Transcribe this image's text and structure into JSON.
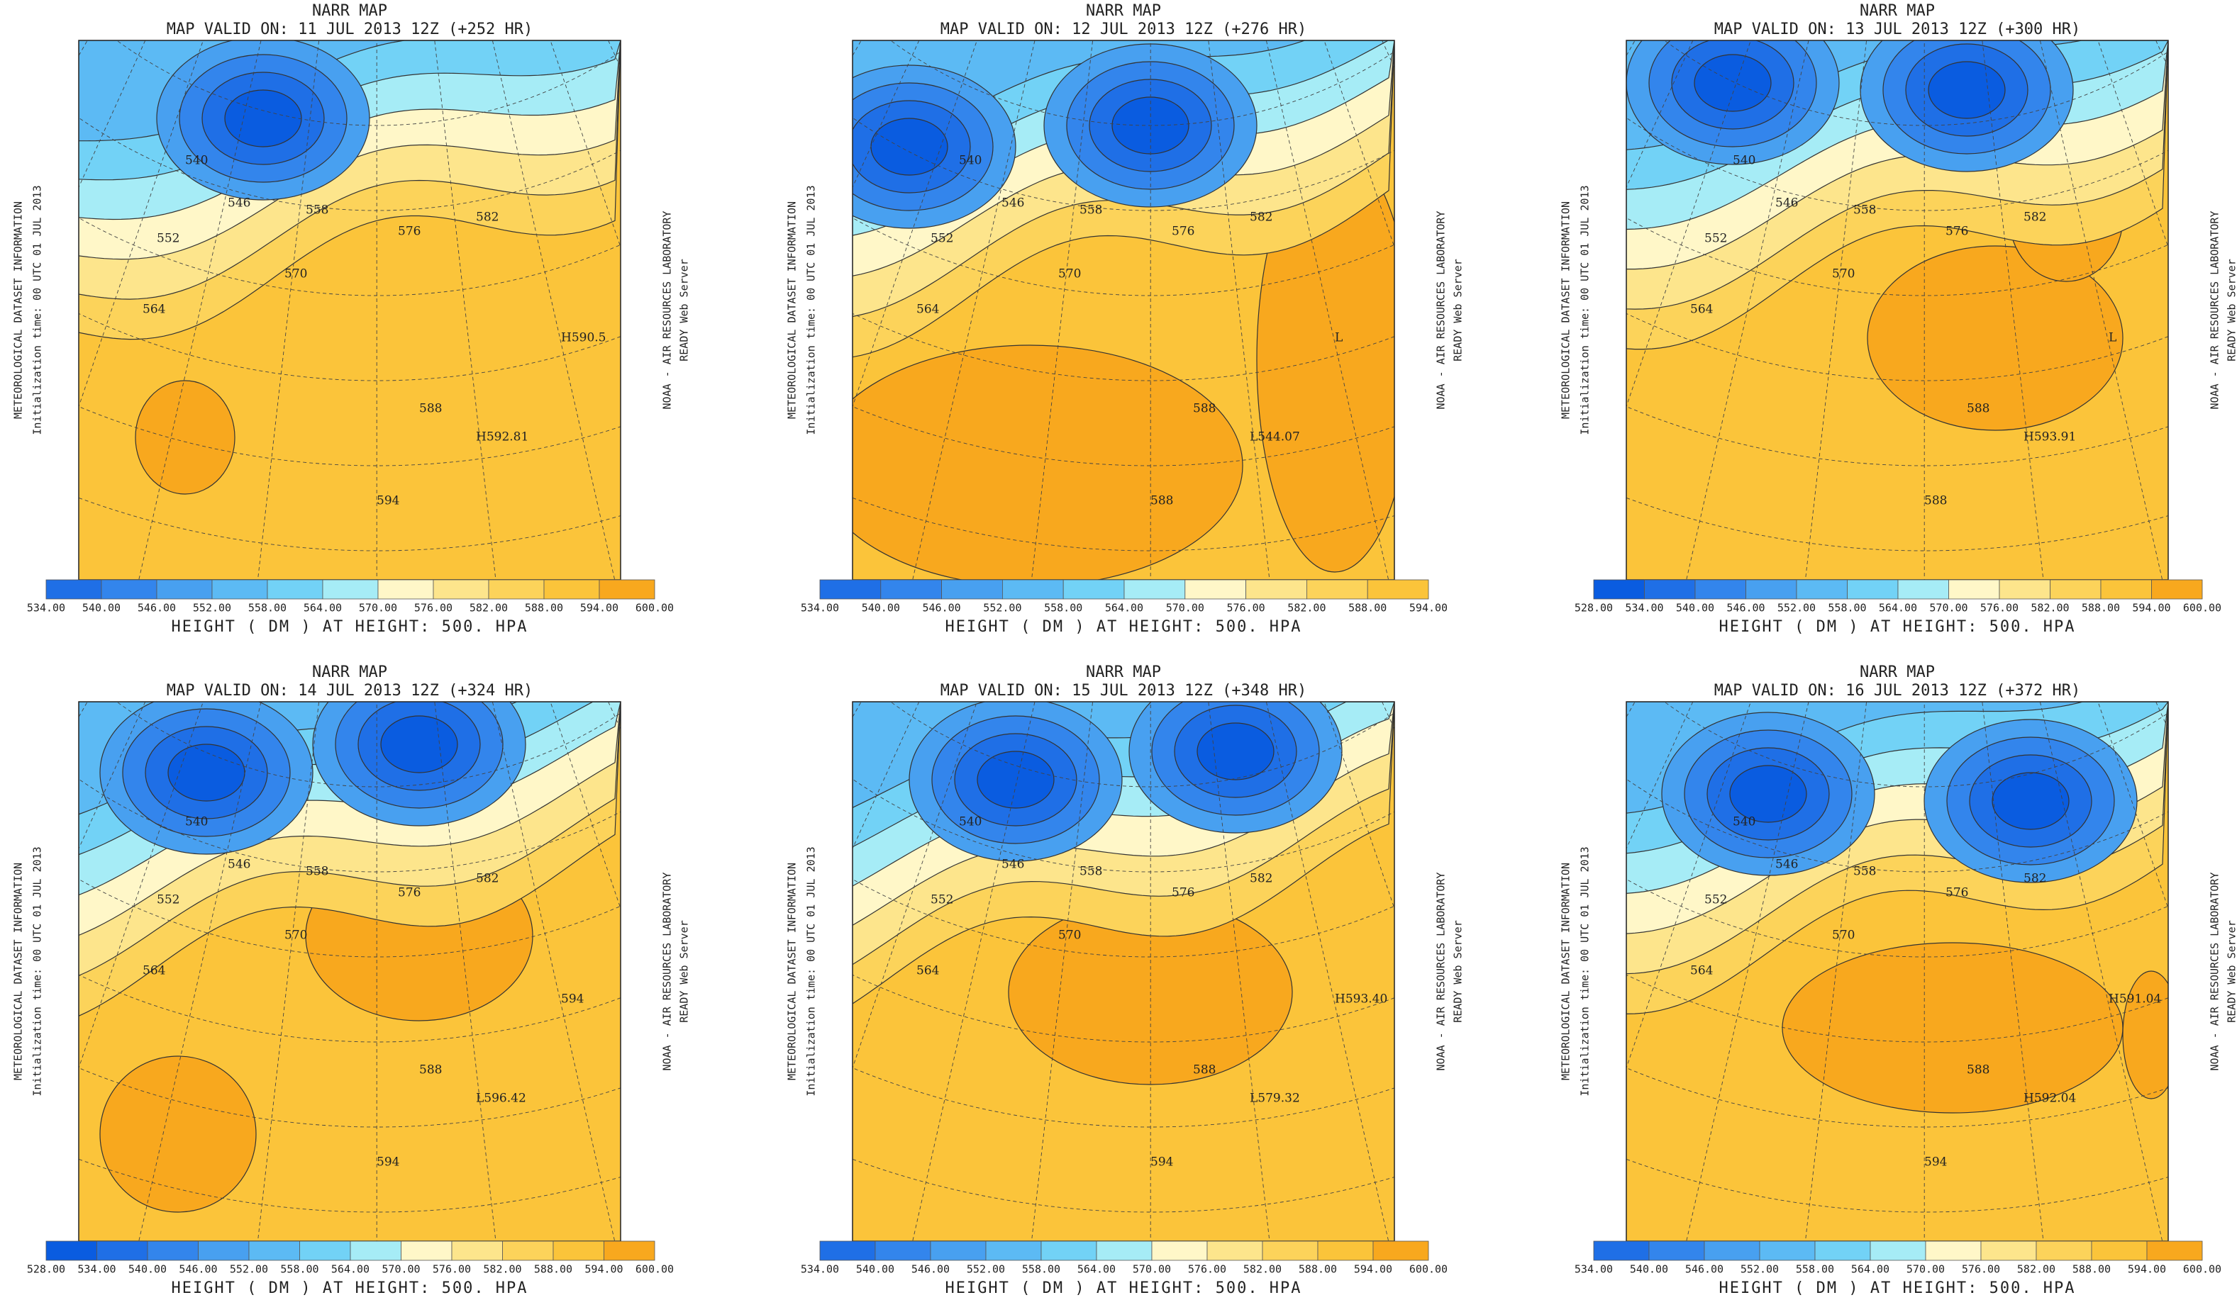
{
  "panels": [
    {
      "title": "NARR MAP",
      "valid": "MAP VALID ON: 11 JUL 2013 12Z (+252 HR)",
      "side_left": [
        "METEOROLOGICAL DATASET INFORMATION",
        "Initialization time: 00 UTC 01 JUL 2013"
      ],
      "side_right": [
        "NOAA - AIR RESOURCES LABORATORY",
        "READY Web Server"
      ],
      "colorbar_labels": [
        {
          "value": 534,
          "label": "534.00"
        },
        {
          "value": 540,
          "label": "540.00"
        },
        {
          "value": 546,
          "label": "546.00"
        },
        {
          "value": 552,
          "label": "552.00"
        },
        {
          "value": 558,
          "label": "558.00"
        },
        {
          "value": 564,
          "label": "564.00"
        },
        {
          "value": 570,
          "label": "570.00"
        },
        {
          "value": 576,
          "label": "576.00"
        },
        {
          "value": 582,
          "label": "582.00"
        },
        {
          "value": 588,
          "label": "588.00"
        },
        {
          "value": 594,
          "label": "594.00"
        },
        {
          "value": 600,
          "label": "600.00"
        }
      ],
      "caption": "HEIGHT ( DM ) AT HEIGHT: 500. HPA",
      "contour_labels": [
        "540",
        "546",
        "552",
        "558",
        "564",
        "570",
        "576",
        "582",
        "588",
        "594",
        "H592.81",
        "H590.5"
      ]
    },
    {
      "title": "NARR MAP",
      "valid": "MAP VALID ON: 12 JUL 2013 12Z (+276 HR)",
      "side_left": [
        "METEOROLOGICAL DATASET INFORMATION",
        "Initialization time: 00 UTC 01 JUL 2013"
      ],
      "side_right": [
        "NOAA - AIR RESOURCES LABORATORY",
        "READY Web Server"
      ],
      "colorbar_labels": [
        {
          "value": 534,
          "label": "534.00"
        },
        {
          "value": 540,
          "label": "540.00"
        },
        {
          "value": 546,
          "label": "546.00"
        },
        {
          "value": 552,
          "label": "552.00"
        },
        {
          "value": 558,
          "label": "558.00"
        },
        {
          "value": 564,
          "label": "564.00"
        },
        {
          "value": 570,
          "label": "570.00"
        },
        {
          "value": 576,
          "label": "576.00"
        },
        {
          "value": 582,
          "label": "582.00"
        },
        {
          "value": 588,
          "label": "588.00"
        },
        {
          "value": 594,
          "label": "594.00"
        }
      ],
      "caption": "HEIGHT ( DM ) AT HEIGHT: 500. HPA",
      "contour_labels": [
        "540",
        "546",
        "552",
        "558",
        "564",
        "570",
        "576",
        "582",
        "588",
        "588",
        "L544.07",
        "L"
      ]
    },
    {
      "title": "NARR MAP",
      "valid": "MAP VALID ON: 13 JUL 2013 12Z (+300 HR)",
      "side_left": [
        "METEOROLOGICAL DATASET INFORMATION",
        "Initialization time: 00 UTC 01 JUL 2013"
      ],
      "side_right": [
        "NOAA - AIR RESOURCES LABORATORY",
        "READY Web Server"
      ],
      "colorbar_labels": [
        {
          "value": 528,
          "label": "528.00"
        },
        {
          "value": 534,
          "label": "534.00"
        },
        {
          "value": 540,
          "label": "540.00"
        },
        {
          "value": 546,
          "label": "546.00"
        },
        {
          "value": 552,
          "label": "552.00"
        },
        {
          "value": 558,
          "label": "558.00"
        },
        {
          "value": 564,
          "label": "564.00"
        },
        {
          "value": 570,
          "label": "570.00"
        },
        {
          "value": 576,
          "label": "576.00"
        },
        {
          "value": 582,
          "label": "582.00"
        },
        {
          "value": 588,
          "label": "588.00"
        },
        {
          "value": 594,
          "label": "594.00"
        },
        {
          "value": 600,
          "label": "600.00"
        }
      ],
      "caption": "HEIGHT ( DM ) AT HEIGHT: 500. HPA",
      "contour_labels": [
        "540",
        "546",
        "552",
        "558",
        "564",
        "570",
        "576",
        "582",
        "588",
        "588",
        "H593.91",
        "L"
      ]
    },
    {
      "title": "NARR MAP",
      "valid": "MAP VALID ON: 14 JUL 2013 12Z (+324 HR)",
      "side_left": [
        "METEOROLOGICAL DATASET INFORMATION",
        "Initialization time: 00 UTC 01 JUL 2013"
      ],
      "side_right": [
        "NOAA - AIR RESOURCES LABORATORY",
        "READY Web Server"
      ],
      "colorbar_labels": [
        {
          "value": 528,
          "label": "528.00"
        },
        {
          "value": 534,
          "label": "534.00"
        },
        {
          "value": 540,
          "label": "540.00"
        },
        {
          "value": 546,
          "label": "546.00"
        },
        {
          "value": 552,
          "label": "552.00"
        },
        {
          "value": 558,
          "label": "558.00"
        },
        {
          "value": 564,
          "label": "564.00"
        },
        {
          "value": 570,
          "label": "570.00"
        },
        {
          "value": 576,
          "label": "576.00"
        },
        {
          "value": 582,
          "label": "582.00"
        },
        {
          "value": 588,
          "label": "588.00"
        },
        {
          "value": 594,
          "label": "594.00"
        },
        {
          "value": 600,
          "label": "600.00"
        }
      ],
      "caption": "HEIGHT ( DM ) AT HEIGHT: 500. HPA",
      "contour_labels": [
        "540",
        "546",
        "552",
        "558",
        "564",
        "570",
        "576",
        "582",
        "588",
        "594",
        "L596.42",
        "594"
      ]
    },
    {
      "title": "NARR MAP",
      "valid": "MAP VALID ON: 15 JUL 2013 12Z (+348 HR)",
      "side_left": [
        "METEOROLOGICAL DATASET INFORMATION",
        "Initialization time: 00 UTC 01 JUL 2013"
      ],
      "side_right": [
        "NOAA - AIR RESOURCES LABORATORY",
        "READY Web Server"
      ],
      "colorbar_labels": [
        {
          "value": 534,
          "label": "534.00"
        },
        {
          "value": 540,
          "label": "540.00"
        },
        {
          "value": 546,
          "label": "546.00"
        },
        {
          "value": 552,
          "label": "552.00"
        },
        {
          "value": 558,
          "label": "558.00"
        },
        {
          "value": 564,
          "label": "564.00"
        },
        {
          "value": 570,
          "label": "570.00"
        },
        {
          "value": 576,
          "label": "576.00"
        },
        {
          "value": 582,
          "label": "582.00"
        },
        {
          "value": 588,
          "label": "588.00"
        },
        {
          "value": 594,
          "label": "594.00"
        },
        {
          "value": 600,
          "label": "600.00"
        }
      ],
      "caption": "HEIGHT ( DM ) AT HEIGHT: 500. HPA",
      "contour_labels": [
        "540",
        "546",
        "552",
        "558",
        "564",
        "570",
        "576",
        "582",
        "588",
        "594",
        "L579.32",
        "H593.40"
      ]
    },
    {
      "title": "NARR MAP",
      "valid": "MAP VALID ON: 16 JUL 2013 12Z (+372 HR)",
      "side_left": [
        "METEOROLOGICAL DATASET INFORMATION",
        "Initialization time: 00 UTC 01 JUL 2013"
      ],
      "side_right": [
        "NOAA - AIR RESOURCES LABORATORY",
        "READY Web Server"
      ],
      "colorbar_labels": [
        {
          "value": 534,
          "label": "534.00"
        },
        {
          "value": 540,
          "label": "540.00"
        },
        {
          "value": 546,
          "label": "546.00"
        },
        {
          "value": 552,
          "label": "552.00"
        },
        {
          "value": 558,
          "label": "558.00"
        },
        {
          "value": 564,
          "label": "564.00"
        },
        {
          "value": 570,
          "label": "570.00"
        },
        {
          "value": 576,
          "label": "576.00"
        },
        {
          "value": 582,
          "label": "582.00"
        },
        {
          "value": 588,
          "label": "588.00"
        },
        {
          "value": 594,
          "label": "594.00"
        },
        {
          "value": 600,
          "label": "600.00"
        }
      ],
      "caption": "HEIGHT ( DM ) AT HEIGHT: 500. HPA",
      "contour_labels": [
        "540",
        "546",
        "552",
        "558",
        "564",
        "570",
        "576",
        "582",
        "588",
        "594",
        "H592.04",
        "H591.04"
      ]
    }
  ]
}
